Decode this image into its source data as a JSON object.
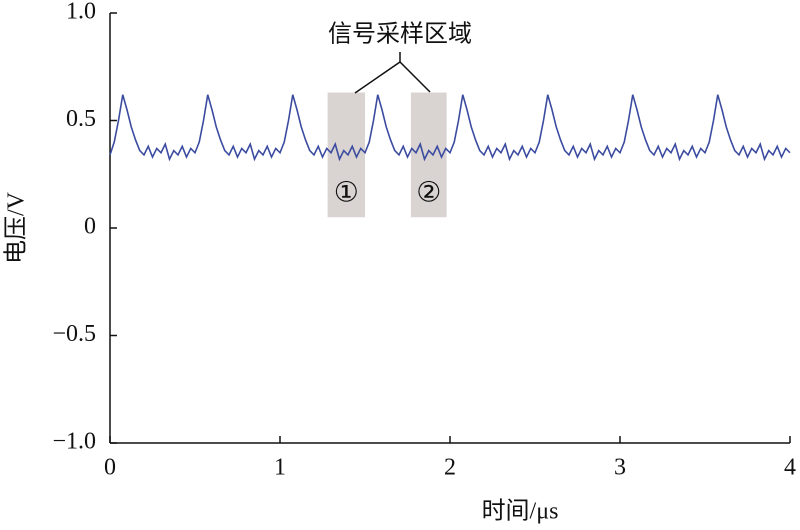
{
  "chart_data": {
    "type": "line",
    "x_label": "时间/μs",
    "y_label": "电压/V",
    "xlim": [
      0,
      4
    ],
    "ylim": [
      -1,
      1
    ],
    "xticks": [
      0,
      1,
      2,
      3,
      4
    ],
    "yticks": [
      {
        "value": 1,
        "label": "1.0"
      },
      0.5,
      0,
      {
        "value": -0.5,
        "label": "−0.5"
      },
      {
        "value": -1,
        "label": "−1.0"
      }
    ],
    "annotation": "信号采样区域",
    "regions": [
      {
        "label": "①",
        "x": [
          1.28,
          1.5
        ],
        "y": [
          0.05,
          0.63
        ]
      },
      {
        "label": "②",
        "x": [
          1.77,
          1.98
        ],
        "y": [
          0.05,
          0.63
        ]
      }
    ],
    "region_color": "#d9d3d1",
    "series": [
      {
        "color": "#3b4ba0",
        "x": [
          0,
          0.025,
          0.05,
          0.075,
          0.1,
          0.125,
          0.15,
          0.175,
          0.2,
          0.225,
          0.25,
          0.275,
          0.3,
          0.325,
          0.35,
          0.375,
          0.4,
          0.425,
          0.45,
          0.475,
          0.5,
          0.525,
          0.55,
          0.575,
          0.6,
          0.625,
          0.65,
          0.675,
          0.7,
          0.725,
          0.75,
          0.775,
          0.8,
          0.825,
          0.85,
          0.875,
          0.9,
          0.925,
          0.95,
          0.975,
          1,
          1.025,
          1.05,
          1.075,
          1.1,
          1.125,
          1.15,
          1.175,
          1.2,
          1.225,
          1.25,
          1.275,
          1.3,
          1.325,
          1.35,
          1.375,
          1.4,
          1.425,
          1.45,
          1.475,
          1.5,
          1.525,
          1.55,
          1.575,
          1.6,
          1.625,
          1.65,
          1.675,
          1.7,
          1.725,
          1.75,
          1.775,
          1.8,
          1.825,
          1.85,
          1.875,
          1.9,
          1.925,
          1.95,
          1.975,
          2,
          2.025,
          2.05,
          2.075,
          2.1,
          2.125,
          2.15,
          2.175,
          2.2,
          2.225,
          2.25,
          2.275,
          2.3,
          2.325,
          2.35,
          2.375,
          2.4,
          2.425,
          2.45,
          2.475,
          2.5,
          2.525,
          2.55,
          2.575,
          2.6,
          2.625,
          2.65,
          2.675,
          2.7,
          2.725,
          2.75,
          2.775,
          2.8,
          2.825,
          2.85,
          2.875,
          2.9,
          2.925,
          2.95,
          2.975,
          3,
          3.025,
          3.05,
          3.075,
          3.1,
          3.125,
          3.15,
          3.175,
          3.2,
          3.225,
          3.25,
          3.275,
          3.3,
          3.325,
          3.35,
          3.375,
          3.4,
          3.425,
          3.45,
          3.475,
          3.5,
          3.525,
          3.55,
          3.575,
          3.6,
          3.625,
          3.65,
          3.675,
          3.7,
          3.725,
          3.75,
          3.775,
          3.8,
          3.825,
          3.85,
          3.875,
          3.9,
          3.925,
          3.95,
          3.975,
          4
        ],
        "values": [
          0.34,
          0.4,
          0.5,
          0.62,
          0.55,
          0.47,
          0.41,
          0.36,
          0.34,
          0.38,
          0.33,
          0.37,
          0.35,
          0.39,
          0.32,
          0.36,
          0.34,
          0.38,
          0.33,
          0.37,
          0.35,
          0.4,
          0.5,
          0.62,
          0.55,
          0.47,
          0.41,
          0.36,
          0.34,
          0.38,
          0.33,
          0.37,
          0.35,
          0.39,
          0.32,
          0.36,
          0.34,
          0.38,
          0.33,
          0.37,
          0.35,
          0.4,
          0.5,
          0.62,
          0.55,
          0.47,
          0.41,
          0.36,
          0.34,
          0.38,
          0.33,
          0.37,
          0.35,
          0.39,
          0.32,
          0.36,
          0.34,
          0.38,
          0.33,
          0.37,
          0.35,
          0.4,
          0.5,
          0.62,
          0.55,
          0.47,
          0.41,
          0.36,
          0.34,
          0.38,
          0.33,
          0.37,
          0.35,
          0.39,
          0.32,
          0.36,
          0.34,
          0.38,
          0.33,
          0.37,
          0.35,
          0.4,
          0.5,
          0.62,
          0.55,
          0.47,
          0.41,
          0.36,
          0.34,
          0.38,
          0.33,
          0.37,
          0.35,
          0.39,
          0.32,
          0.36,
          0.34,
          0.38,
          0.33,
          0.37,
          0.35,
          0.4,
          0.5,
          0.62,
          0.55,
          0.47,
          0.41,
          0.36,
          0.34,
          0.38,
          0.33,
          0.37,
          0.35,
          0.39,
          0.32,
          0.36,
          0.34,
          0.38,
          0.33,
          0.37,
          0.35,
          0.4,
          0.5,
          0.62,
          0.55,
          0.47,
          0.41,
          0.36,
          0.34,
          0.38,
          0.33,
          0.37,
          0.35,
          0.39,
          0.32,
          0.36,
          0.34,
          0.38,
          0.33,
          0.37,
          0.35,
          0.4,
          0.5,
          0.62,
          0.55,
          0.47,
          0.41,
          0.36,
          0.34,
          0.38,
          0.33,
          0.37,
          0.35,
          0.39,
          0.32,
          0.36,
          0.34,
          0.38,
          0.33,
          0.37,
          0.35
        ]
      }
    ]
  }
}
